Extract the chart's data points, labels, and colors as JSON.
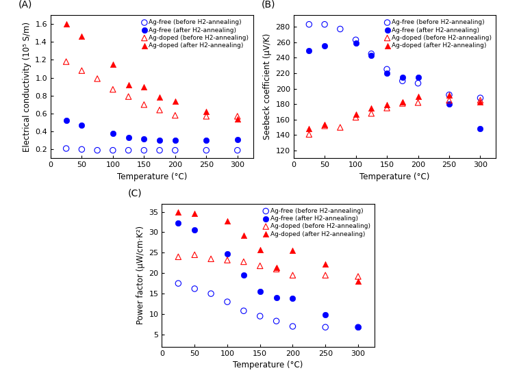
{
  "panel_A": {
    "title": "(A)",
    "xlabel": "Temperature (°C)",
    "ylabel": "Electrical conductivity (10⁵ S/m)",
    "xlim": [
      0,
      325
    ],
    "ylim": [
      0.1,
      1.7
    ],
    "yticks": [
      0.2,
      0.4,
      0.6,
      0.8,
      1.0,
      1.2,
      1.4,
      1.6
    ],
    "xticks": [
      0,
      50,
      100,
      150,
      200,
      250,
      300
    ],
    "series": {
      "ag_free_before": {
        "x": [
          25,
          50,
          75,
          100,
          125,
          150,
          175,
          200,
          250,
          300
        ],
        "y": [
          0.21,
          0.2,
          0.19,
          0.19,
          0.19,
          0.19,
          0.19,
          0.19,
          0.19,
          0.19
        ],
        "color": "blue",
        "marker": "o",
        "filled": false,
        "label": "Ag-free (before H2-annealing)"
      },
      "ag_free_after": {
        "x": [
          25,
          50,
          100,
          125,
          150,
          175,
          200,
          250,
          300
        ],
        "y": [
          0.52,
          0.47,
          0.38,
          0.33,
          0.32,
          0.3,
          0.3,
          0.3,
          0.31
        ],
        "color": "blue",
        "marker": "o",
        "filled": true,
        "label": "Ag-free (after H2-annealing)"
      },
      "ag_doped_before": {
        "x": [
          25,
          50,
          75,
          100,
          125,
          150,
          175,
          200,
          250,
          300
        ],
        "y": [
          1.18,
          1.08,
          0.99,
          0.87,
          0.79,
          0.7,
          0.64,
          0.58,
          0.57,
          0.57
        ],
        "color": "red",
        "marker": "^",
        "filled": false,
        "label": "Ag-doped (before H2-annealing)"
      },
      "ag_doped_after": {
        "x": [
          25,
          50,
          100,
          125,
          150,
          175,
          200,
          250,
          300
        ],
        "y": [
          1.6,
          1.46,
          1.15,
          0.92,
          0.9,
          0.78,
          0.74,
          0.62,
          0.54
        ],
        "color": "red",
        "marker": "^",
        "filled": true,
        "label": "Ag-doped (after H2-annealing)"
      }
    }
  },
  "panel_B": {
    "title": "(B)",
    "xlabel": "Temperature (°C)",
    "ylabel": "Seebeck coefficient (μV/K)",
    "xlim": [
      0,
      325
    ],
    "ylim": [
      110,
      295
    ],
    "yticks": [
      120,
      140,
      160,
      180,
      200,
      220,
      240,
      260,
      280
    ],
    "xticks": [
      0,
      50,
      100,
      150,
      200,
      250,
      300
    ],
    "series": {
      "ag_free_before": {
        "x": [
          25,
          50,
          75,
          100,
          125,
          150,
          175,
          200,
          250,
          300
        ],
        "y": [
          283,
          283,
          277,
          263,
          245,
          225,
          210,
          207,
          192,
          188
        ],
        "color": "blue",
        "marker": "o",
        "filled": false,
        "label": "Ag-free (before H2-annealing)"
      },
      "ag_free_after": {
        "x": [
          25,
          50,
          100,
          125,
          150,
          175,
          200,
          250,
          300
        ],
        "y": [
          249,
          255,
          259,
          243,
          220,
          215,
          215,
          180,
          148
        ],
        "color": "blue",
        "marker": "o",
        "filled": true,
        "label": "Ag-free (after H2-annealing)"
      },
      "ag_doped_before": {
        "x": [
          25,
          50,
          75,
          100,
          125,
          150,
          175,
          200,
          250,
          300
        ],
        "y": [
          141,
          152,
          150,
          163,
          168,
          175,
          181,
          182,
          185,
          185
        ],
        "color": "red",
        "marker": "^",
        "filled": false,
        "label": "Ag-doped (before H2-annealing)"
      },
      "ag_doped_after": {
        "x": [
          25,
          50,
          100,
          125,
          150,
          175,
          200,
          250,
          300
        ],
        "y": [
          148,
          154,
          167,
          175,
          179,
          183,
          190,
          192,
          183
        ],
        "color": "red",
        "marker": "^",
        "filled": true,
        "label": "Ag-doped (after H2-annealing)"
      }
    }
  },
  "panel_C": {
    "title": "(C)",
    "xlabel": "Temperature (°C)",
    "ylabel": "Power factor (μW/cm·K²)",
    "xlim": [
      0,
      325
    ],
    "ylim": [
      2,
      37
    ],
    "yticks": [
      5,
      10,
      15,
      20,
      25,
      30,
      35
    ],
    "xticks": [
      0,
      50,
      100,
      150,
      200,
      250,
      300
    ],
    "series": {
      "ag_free_before": {
        "x": [
          25,
          50,
          75,
          100,
          125,
          150,
          175,
          200,
          250,
          300
        ],
        "y": [
          17.5,
          16.2,
          15.0,
          13.0,
          10.8,
          9.5,
          8.3,
          7.0,
          6.8,
          6.8
        ],
        "color": "blue",
        "marker": "o",
        "filled": false,
        "label": "Ag-free (before H2-annealing)"
      },
      "ag_free_after": {
        "x": [
          25,
          50,
          100,
          125,
          150,
          175,
          200,
          250,
          300
        ],
        "y": [
          32.2,
          30.5,
          24.8,
          19.5,
          15.5,
          14.0,
          13.8,
          9.8,
          6.8
        ],
        "color": "blue",
        "marker": "o",
        "filled": true,
        "label": "Ag-free (after H2-annealing)"
      },
      "ag_doped_before": {
        "x": [
          25,
          50,
          75,
          100,
          125,
          150,
          175,
          200,
          250,
          300
        ],
        "y": [
          24.0,
          24.5,
          23.5,
          23.2,
          22.8,
          21.8,
          21.0,
          19.5,
          19.5,
          19.2
        ],
        "color": "red",
        "marker": "^",
        "filled": false,
        "label": "Ag-doped (before H2-annealing)"
      },
      "ag_doped_after": {
        "x": [
          25,
          50,
          100,
          125,
          150,
          175,
          200,
          250,
          300
        ],
        "y": [
          35.0,
          34.5,
          32.8,
          29.2,
          25.8,
          21.3,
          25.5,
          22.2,
          18.0
        ],
        "color": "red",
        "marker": "^",
        "filled": true,
        "label": "Ag-doped (after H2-annealing)"
      }
    }
  },
  "marker_size": 6,
  "font_size": 8,
  "legend_font_size": 6.5,
  "axis_label_font_size": 8.5
}
